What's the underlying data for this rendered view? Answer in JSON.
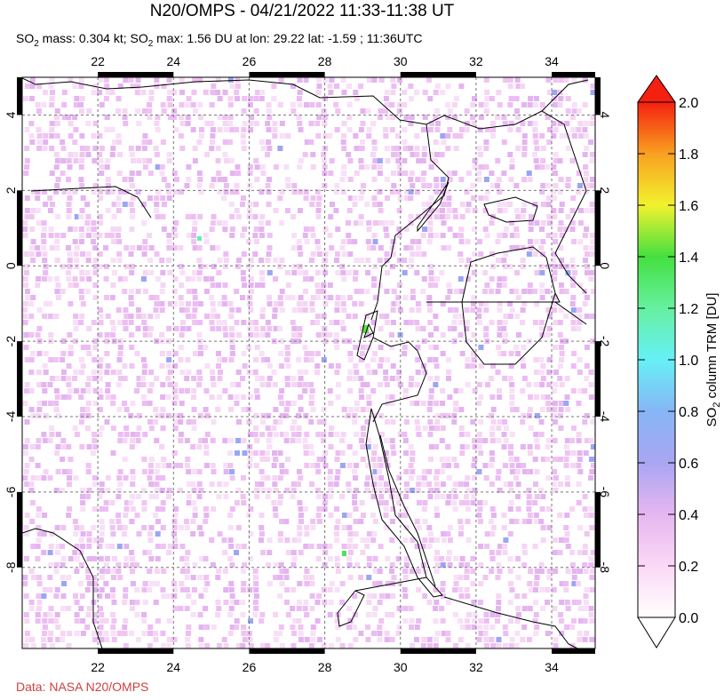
{
  "title": "N20/OMPS - 04/21/2022 11:33-11:38 UT",
  "subtitle": [
    "SO",
    "2",
    " mass: 0.304 kt; SO",
    "2",
    " max: 1.56 DU at lon: 29.22 lat: -1.59 ; 11:36UTC"
  ],
  "map": {
    "lonlim": [
      20,
      35.15
    ],
    "latlim": [
      -10.15,
      5
    ],
    "lon_ticks": [
      22,
      24,
      26,
      28,
      30,
      32,
      34
    ],
    "lat_ticks": [
      4,
      2,
      0,
      -2,
      -4,
      -6,
      -8
    ]
  },
  "colorbar": {
    "label": [
      "SO",
      "2",
      " column TRM [DU]"
    ],
    "lim": [
      0,
      2
    ],
    "ticks": [
      {
        "value": 0,
        "label": "0.0"
      },
      {
        "value": 0.2,
        "label": "0.2"
      },
      {
        "value": 0.4,
        "label": "0.4"
      },
      {
        "value": 0.6,
        "label": "0.6"
      },
      {
        "value": 0.8,
        "label": "0.8"
      },
      {
        "value": 1,
        "label": "1.0"
      },
      {
        "value": 1.2,
        "label": "1.2"
      },
      {
        "value": 1.4,
        "label": "1.4"
      },
      {
        "value": 1.6,
        "label": "1.6"
      },
      {
        "value": 1.8,
        "label": "1.8"
      },
      {
        "value": 2,
        "label": "2.0"
      }
    ]
  },
  "credit": "Data: NASA N20/OMPS"
}
